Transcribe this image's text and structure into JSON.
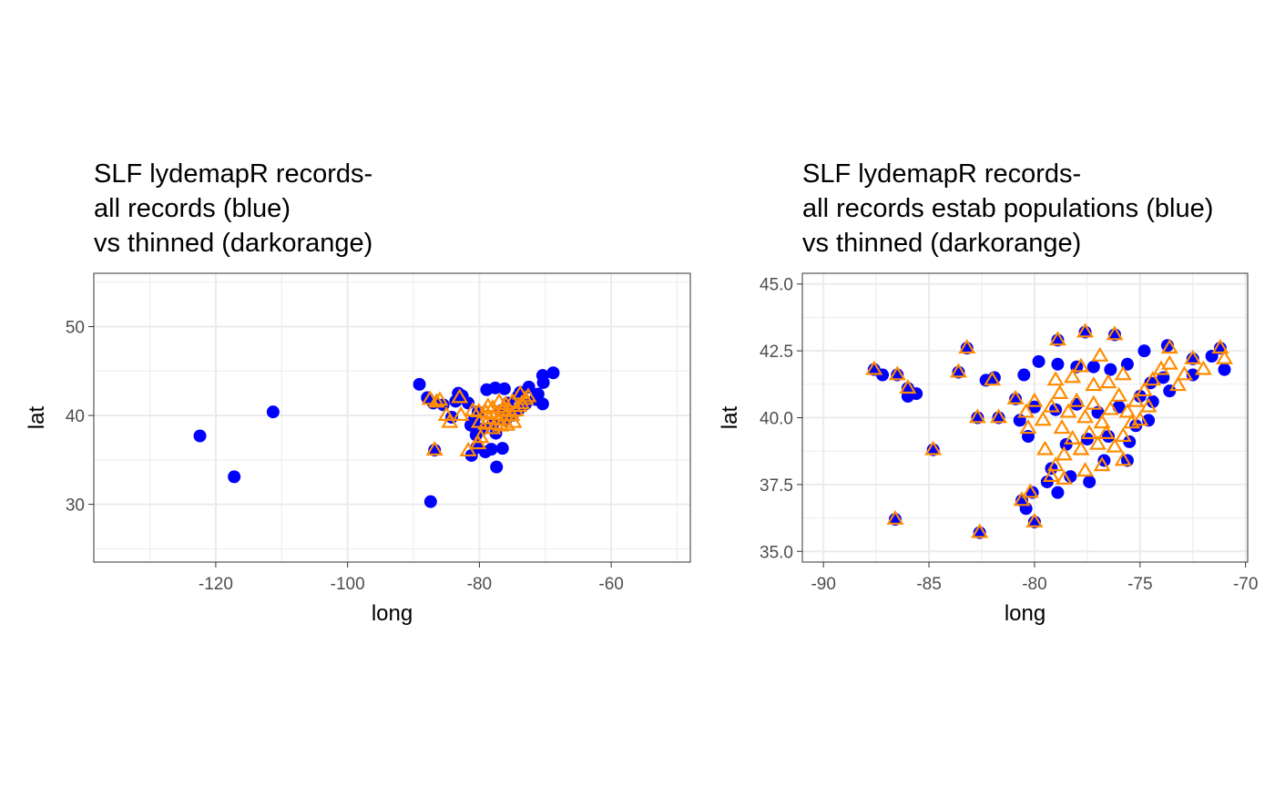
{
  "colors": {
    "all_records": "#0000ff",
    "thinned": "#ff8c00",
    "grid": "#ebebeb",
    "border": "#333333"
  },
  "chart_data": [
    {
      "type": "scatter",
      "title": [
        "SLF lydemapR records-",
        "all records (blue)",
        "vs thinned (darkorange)"
      ],
      "xlabel": "long",
      "ylabel": "lat",
      "xlim": [
        -138.5,
        -48
      ],
      "ylim": [
        23.5,
        56
      ],
      "xticks": [
        -120,
        -100,
        -80,
        -60
      ],
      "xtick_labels": [
        "-120",
        "-100",
        "-80",
        "-60"
      ],
      "yticks": [
        30,
        40,
        50
      ],
      "ytick_labels": [
        "30",
        "40",
        "50"
      ],
      "grid": true,
      "legend": "none",
      "series": [
        {
          "marker": "circle-filled",
          "color": "blue",
          "points": [
            [
              -122.4,
              37.7
            ],
            [
              -117.2,
              33.1
            ],
            [
              -111.3,
              40.4
            ],
            [
              -89.1,
              43.5
            ],
            [
              -87.4,
              30.3
            ],
            [
              -87.9,
              42.0
            ],
            [
              -87.0,
              41.4
            ],
            [
              -86.8,
              36.1
            ],
            [
              -85.5,
              41.2
            ],
            [
              -84.2,
              39.8
            ],
            [
              -83.6,
              41.6
            ],
            [
              -83.2,
              42.5
            ],
            [
              -82.6,
              42.2
            ],
            [
              -81.7,
              41.4
            ],
            [
              -81.3,
              38.9
            ],
            [
              -80.2,
              40.4
            ],
            [
              -80.5,
              37.8
            ],
            [
              -80.4,
              36.4
            ],
            [
              -81.2,
              35.5
            ],
            [
              -79.1,
              35.9
            ],
            [
              -78.2,
              36.2
            ],
            [
              -77.4,
              34.2
            ],
            [
              -76.5,
              36.3
            ],
            [
              -75.7,
              41.4
            ],
            [
              -77.6,
              43.1
            ],
            [
              -78.9,
              42.9
            ],
            [
              -76.2,
              43.0
            ],
            [
              -74.2,
              42.1
            ],
            [
              -73.8,
              42.6
            ],
            [
              -73.0,
              41.3
            ],
            [
              -71.5,
              41.8
            ],
            [
              -71.1,
              42.4
            ],
            [
              -70.3,
              43.7
            ],
            [
              -70.4,
              41.3
            ],
            [
              -68.8,
              44.8
            ],
            [
              -70.4,
              44.5
            ],
            [
              -72.5,
              43.2
            ],
            [
              -79.5,
              38.5
            ],
            [
              -80.8,
              39.5
            ],
            [
              -78.0,
              39.0
            ],
            [
              -76.0,
              39.5
            ],
            [
              -76.8,
              40.5
            ],
            [
              -75.0,
              40.0
            ],
            [
              -74.0,
              40.7
            ],
            [
              -77.5,
              38.0
            ]
          ]
        },
        {
          "marker": "triangle-open",
          "color": "darkorange",
          "points": [
            [
              -87.5,
              41.8
            ],
            [
              -86.5,
              41.5
            ],
            [
              -86.0,
              41.7
            ],
            [
              -85.0,
              40.0
            ],
            [
              -84.5,
              39.2
            ],
            [
              -83.0,
              42.0
            ],
            [
              -82.8,
              40.0
            ],
            [
              -86.8,
              36.1
            ],
            [
              -81.7,
              36.0
            ],
            [
              -80.2,
              36.8
            ],
            [
              -79.8,
              37.5
            ],
            [
              -81.0,
              40.5
            ],
            [
              -80.1,
              40.4
            ],
            [
              -79.0,
              40.3
            ],
            [
              -78.5,
              39.6
            ],
            [
              -78.0,
              40.8
            ],
            [
              -77.5,
              40.1
            ],
            [
              -77.0,
              39.5
            ],
            [
              -76.5,
              40.4
            ],
            [
              -76.0,
              39.9
            ],
            [
              -75.5,
              40.6
            ],
            [
              -75.1,
              40.0
            ],
            [
              -74.5,
              40.5
            ],
            [
              -74.0,
              41.0
            ],
            [
              -73.6,
              41.3
            ],
            [
              -73.0,
              41.8
            ],
            [
              -72.6,
              42.1
            ],
            [
              -76.0,
              41.2
            ],
            [
              -75.0,
              41.5
            ],
            [
              -77.0,
              41.5
            ],
            [
              -78.0,
              38.5
            ],
            [
              -77.5,
              39.0
            ],
            [
              -79.0,
              39.0
            ],
            [
              -80.0,
              39.2
            ],
            [
              -76.8,
              38.8
            ],
            [
              -75.8,
              38.9
            ],
            [
              -74.8,
              39.2
            ],
            [
              -73.8,
              42.4
            ],
            [
              -76.3,
              40.9
            ],
            [
              -78.7,
              41.0
            ]
          ]
        }
      ]
    },
    {
      "type": "scatter",
      "title": [
        "SLF lydemapR records-",
        "all records estab populations (blue)",
        "vs thinned (darkorange)"
      ],
      "xlabel": "long",
      "ylabel": "lat",
      "xlim": [
        -91,
        -69.9
      ],
      "ylim": [
        34.6,
        45.4
      ],
      "xticks": [
        -90,
        -85,
        -80,
        -75,
        -70
      ],
      "xtick_labels": [
        "-90",
        "-85",
        "-80",
        "-75",
        "-70"
      ],
      "yticks": [
        35,
        37.5,
        40,
        42.5,
        45
      ],
      "ytick_labels": [
        "35.0",
        "37.5",
        "40.0",
        "42.5",
        "45.0"
      ],
      "grid": true,
      "legend": "none",
      "series": [
        {
          "marker": "circle-filled",
          "color": "blue",
          "points": [
            [
              -87.6,
              41.8
            ],
            [
              -87.2,
              41.6
            ],
            [
              -86.5,
              41.6
            ],
            [
              -86.0,
              40.8
            ],
            [
              -85.6,
              40.9
            ],
            [
              -86.0,
              41.1
            ],
            [
              -84.8,
              38.8
            ],
            [
              -83.6,
              41.7
            ],
            [
              -83.2,
              42.6
            ],
            [
              -82.7,
              40.0
            ],
            [
              -81.7,
              40.0
            ],
            [
              -82.3,
              41.4
            ],
            [
              -81.9,
              41.5
            ],
            [
              -86.6,
              36.2
            ],
            [
              -82.6,
              35.7
            ],
            [
              -80.6,
              36.9
            ],
            [
              -80.4,
              36.6
            ],
            [
              -80.0,
              36.1
            ],
            [
              -80.1,
              37.2
            ],
            [
              -79.4,
              37.6
            ],
            [
              -78.9,
              42.9
            ],
            [
              -77.6,
              43.2
            ],
            [
              -76.2,
              43.1
            ],
            [
              -74.8,
              42.5
            ],
            [
              -73.7,
              42.7
            ],
            [
              -72.5,
              42.2
            ],
            [
              -71.6,
              42.3
            ],
            [
              -71.2,
              42.6
            ],
            [
              -71.0,
              41.8
            ],
            [
              -72.5,
              41.6
            ],
            [
              -73.6,
              41.0
            ],
            [
              -74.4,
              40.6
            ],
            [
              -74.6,
              39.9
            ],
            [
              -75.2,
              39.7
            ],
            [
              -75.5,
              39.1
            ],
            [
              -75.6,
              38.4
            ],
            [
              -76.7,
              38.4
            ],
            [
              -77.4,
              37.6
            ],
            [
              -78.3,
              37.8
            ],
            [
              -78.9,
              37.2
            ],
            [
              -79.2,
              38.1
            ],
            [
              -80.3,
              39.3
            ],
            [
              -80.7,
              39.9
            ],
            [
              -80.9,
              40.7
            ],
            [
              -80.5,
              41.6
            ],
            [
              -79.8,
              42.1
            ],
            [
              -78.9,
              42.0
            ],
            [
              -78.0,
              41.9
            ],
            [
              -77.2,
              41.9
            ],
            [
              -76.4,
              41.8
            ],
            [
              -75.6,
              42.0
            ],
            [
              -80.0,
              40.4
            ],
            [
              -79.0,
              40.3
            ],
            [
              -78.0,
              40.5
            ],
            [
              -77.0,
              40.2
            ],
            [
              -76.0,
              40.4
            ],
            [
              -75.0,
              40.8
            ],
            [
              -74.5,
              41.3
            ],
            [
              -73.9,
              41.5
            ],
            [
              -77.5,
              39.2
            ],
            [
              -76.5,
              39.3
            ],
            [
              -78.5,
              39.0
            ]
          ]
        },
        {
          "marker": "triangle-open",
          "color": "darkorange",
          "points": [
            [
              -87.6,
              41.8
            ],
            [
              -86.5,
              41.6
            ],
            [
              -86.0,
              41.1
            ],
            [
              -84.8,
              38.8
            ],
            [
              -83.6,
              41.7
            ],
            [
              -83.2,
              42.6
            ],
            [
              -82.7,
              40.0
            ],
            [
              -81.7,
              40.0
            ],
            [
              -82.0,
              41.4
            ],
            [
              -86.6,
              36.2
            ],
            [
              -82.6,
              35.7
            ],
            [
              -80.6,
              36.9
            ],
            [
              -80.0,
              36.1
            ],
            [
              -80.2,
              37.2
            ],
            [
              -78.9,
              42.9
            ],
            [
              -77.6,
              43.2
            ],
            [
              -76.2,
              43.1
            ],
            [
              -72.5,
              42.2
            ],
            [
              -71.2,
              42.6
            ],
            [
              -71.0,
              42.2
            ],
            [
              -73.6,
              42.6
            ],
            [
              -80.9,
              40.7
            ],
            [
              -80.4,
              40.2
            ],
            [
              -80.0,
              40.6
            ],
            [
              -79.6,
              39.9
            ],
            [
              -79.2,
              40.4
            ],
            [
              -78.8,
              40.9
            ],
            [
              -78.4,
              40.2
            ],
            [
              -78.0,
              40.6
            ],
            [
              -77.6,
              40.0
            ],
            [
              -77.2,
              40.5
            ],
            [
              -76.8,
              39.8
            ],
            [
              -76.4,
              40.3
            ],
            [
              -76.0,
              40.8
            ],
            [
              -75.6,
              40.2
            ],
            [
              -75.2,
              40.6
            ],
            [
              -74.8,
              41.0
            ],
            [
              -74.4,
              41.4
            ],
            [
              -74.0,
              41.8
            ],
            [
              -73.6,
              42.0
            ],
            [
              -79.5,
              38.8
            ],
            [
              -79.0,
              38.2
            ],
            [
              -78.6,
              38.6
            ],
            [
              -78.2,
              39.2
            ],
            [
              -77.8,
              38.8
            ],
            [
              -77.4,
              39.4
            ],
            [
              -77.0,
              39.0
            ],
            [
              -76.6,
              39.4
            ],
            [
              -76.2,
              38.9
            ],
            [
              -75.8,
              39.3
            ],
            [
              -75.4,
              39.8
            ],
            [
              -79.2,
              37.8
            ],
            [
              -78.6,
              37.7
            ],
            [
              -77.6,
              38.0
            ],
            [
              -76.8,
              38.2
            ],
            [
              -75.8,
              38.4
            ],
            [
              -76.5,
              41.3
            ],
            [
              -75.8,
              41.6
            ],
            [
              -77.2,
              41.2
            ],
            [
              -78.2,
              41.5
            ],
            [
              -79.0,
              41.4
            ],
            [
              -72.9,
              41.6
            ],
            [
              -72.0,
              41.8
            ],
            [
              -73.2,
              41.2
            ],
            [
              -74.6,
              40.4
            ],
            [
              -75.0,
              39.9
            ],
            [
              -78.7,
              39.6
            ],
            [
              -80.3,
              39.6
            ],
            [
              -77.8,
              41.9
            ],
            [
              -76.9,
              42.3
            ]
          ]
        }
      ]
    }
  ]
}
